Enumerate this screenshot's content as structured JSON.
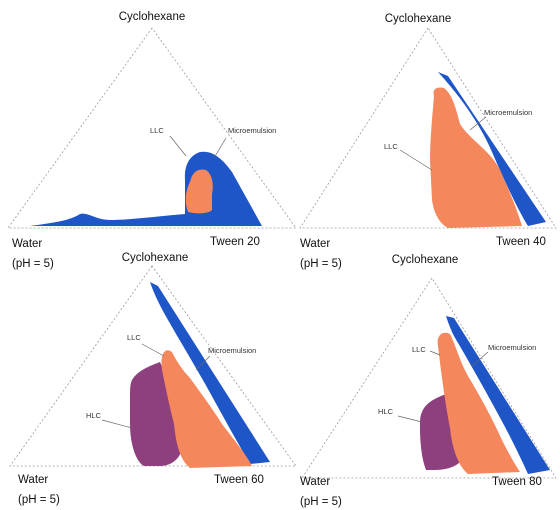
{
  "colors": {
    "microemulsion": "#1f56c7",
    "llc": "#f5875c",
    "hlc": "#8e3f7e"
  },
  "diagrams": [
    {
      "surfactant": "Tween 20",
      "top_vertex": "Cyclohexane",
      "water_label": "Water",
      "ph_label": "(pH = 5)",
      "regions": {
        "microemulsion": "Microemulsion",
        "llc": "LLC"
      }
    },
    {
      "surfactant": "Tween 40",
      "top_vertex": "Cyclohexane",
      "water_label": "Water",
      "ph_label": "(pH = 5)",
      "regions": {
        "microemulsion": "Microemulsion",
        "llc": "LLC"
      }
    },
    {
      "surfactant": "Tween 60",
      "top_vertex": "Cyclohexane",
      "water_label": "Water",
      "ph_label": "(pH = 5)",
      "regions": {
        "microemulsion": "Microemulsion",
        "llc": "LLC",
        "hlc": "HLC"
      }
    },
    {
      "surfactant": "Tween 80",
      "top_vertex": "Cyclohexane",
      "water_label": "Water",
      "ph_label": "(pH = 5)",
      "regions": {
        "microemulsion": "Microemulsion",
        "llc": "LLC",
        "hlc": "HLC"
      }
    }
  ]
}
